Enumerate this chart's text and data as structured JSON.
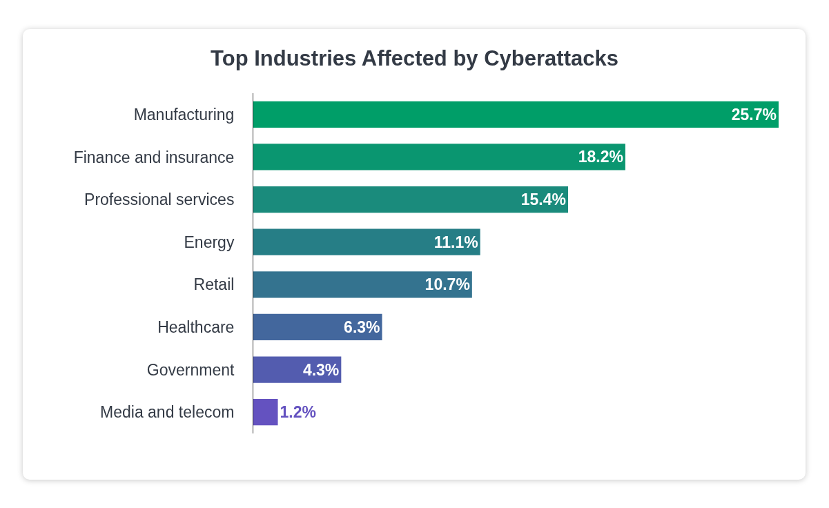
{
  "chart_data": {
    "type": "bar",
    "orientation": "horizontal",
    "title": "Top Industries Affected by Cyberattacks",
    "categories": [
      "Manufacturing",
      "Finance and insurance",
      "Professional services",
      "Energy",
      "Retail",
      "Healthcare",
      "Government",
      "Media and telecom"
    ],
    "values": [
      25.7,
      18.2,
      15.4,
      11.1,
      10.7,
      6.3,
      4.3,
      1.2
    ],
    "value_labels": [
      "25.7%",
      "18.2%",
      "15.4%",
      "11.1%",
      "10.7%",
      "6.3%",
      "4.3%",
      "1.2%"
    ],
    "colors": [
      "#009e68",
      "#0a9670",
      "#1a8b7c",
      "#267e86",
      "#34738f",
      "#43679d",
      "#535caf",
      "#6452c0"
    ]
  }
}
